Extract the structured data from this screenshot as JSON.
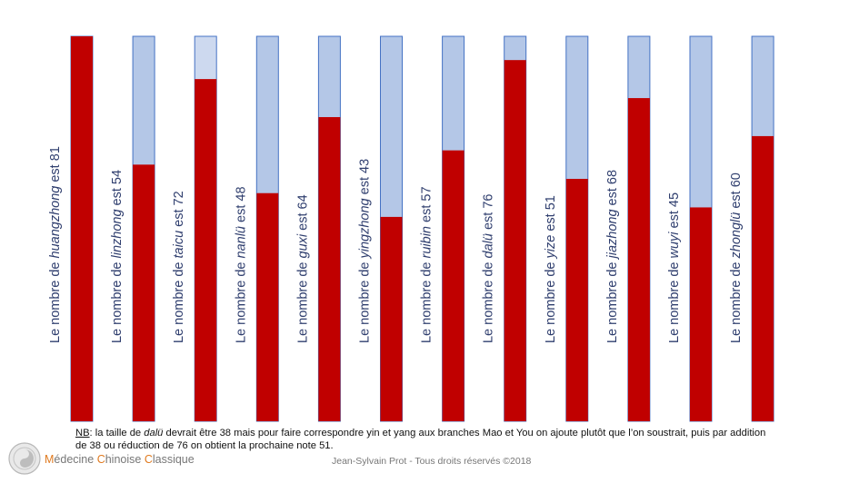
{
  "chart_data": {
    "type": "bar",
    "stacked_remainder": true,
    "max_value": 81,
    "bars": [
      {
        "prefix": "Le nombre de ",
        "note": "huangzhong",
        "suffix": " est ",
        "value": 81
      },
      {
        "prefix": "Le nombre de ",
        "note": "linzhong",
        "suffix": " est ",
        "value": 54
      },
      {
        "prefix": "Le nombre de ",
        "note": "taicu",
        "suffix": " est ",
        "value": 72
      },
      {
        "prefix": "Le nombre de ",
        "note": "nanlü",
        "suffix": " est ",
        "value": 48
      },
      {
        "prefix": "Le nombre de ",
        "note": "guxi",
        "suffix": " est ",
        "value": 64
      },
      {
        "prefix": "Le nombre de ",
        "note": "yingzhong",
        "suffix": " est ",
        "value": 43
      },
      {
        "prefix": "Le nombre de ",
        "note": "ruibin",
        "suffix": " est ",
        "value": 57
      },
      {
        "prefix": "Le nombre de ",
        "note": "dalü",
        "suffix": " est ",
        "value": 76
      },
      {
        "prefix": "Le nombre de ",
        "note": "yize",
        "suffix": " est ",
        "value": 51
      },
      {
        "prefix": "Le nombre de ",
        "note": "jiazhong",
        "suffix": " est ",
        "value": 68
      },
      {
        "prefix": "Le nombre de ",
        "note": "wuyi",
        "suffix": " est ",
        "value": 45
      },
      {
        "prefix": "Le nombre de ",
        "note": "zhonglü",
        "suffix": " est ",
        "value": 60
      }
    ],
    "colors": {
      "value": "#c00000",
      "remainder": "#b4c7e7",
      "remainder_light": "#cdd9ef",
      "border": "#4472c4"
    }
  },
  "footnote": {
    "nb": "NB",
    "part1": ": la taille de ",
    "italic": "dalü",
    "part2": " devrait être 38 mais pour faire correspondre yin et yang aux branches Mao et You on ajoute plutôt que l’on soustrait, puis par addition de 38 ou réduction de 76 on obtient la prochaine note 51."
  },
  "brand": {
    "l1": "M",
    "r1": "édecine ",
    "l2": "C",
    "r2": "hinoise ",
    "l3": "C",
    "r3": "lassique"
  },
  "copyright": "Jean-Sylvain Prot - Tous droits réservés ©2018",
  "icons": {
    "logo": "yin-yang-medallion-icon"
  }
}
